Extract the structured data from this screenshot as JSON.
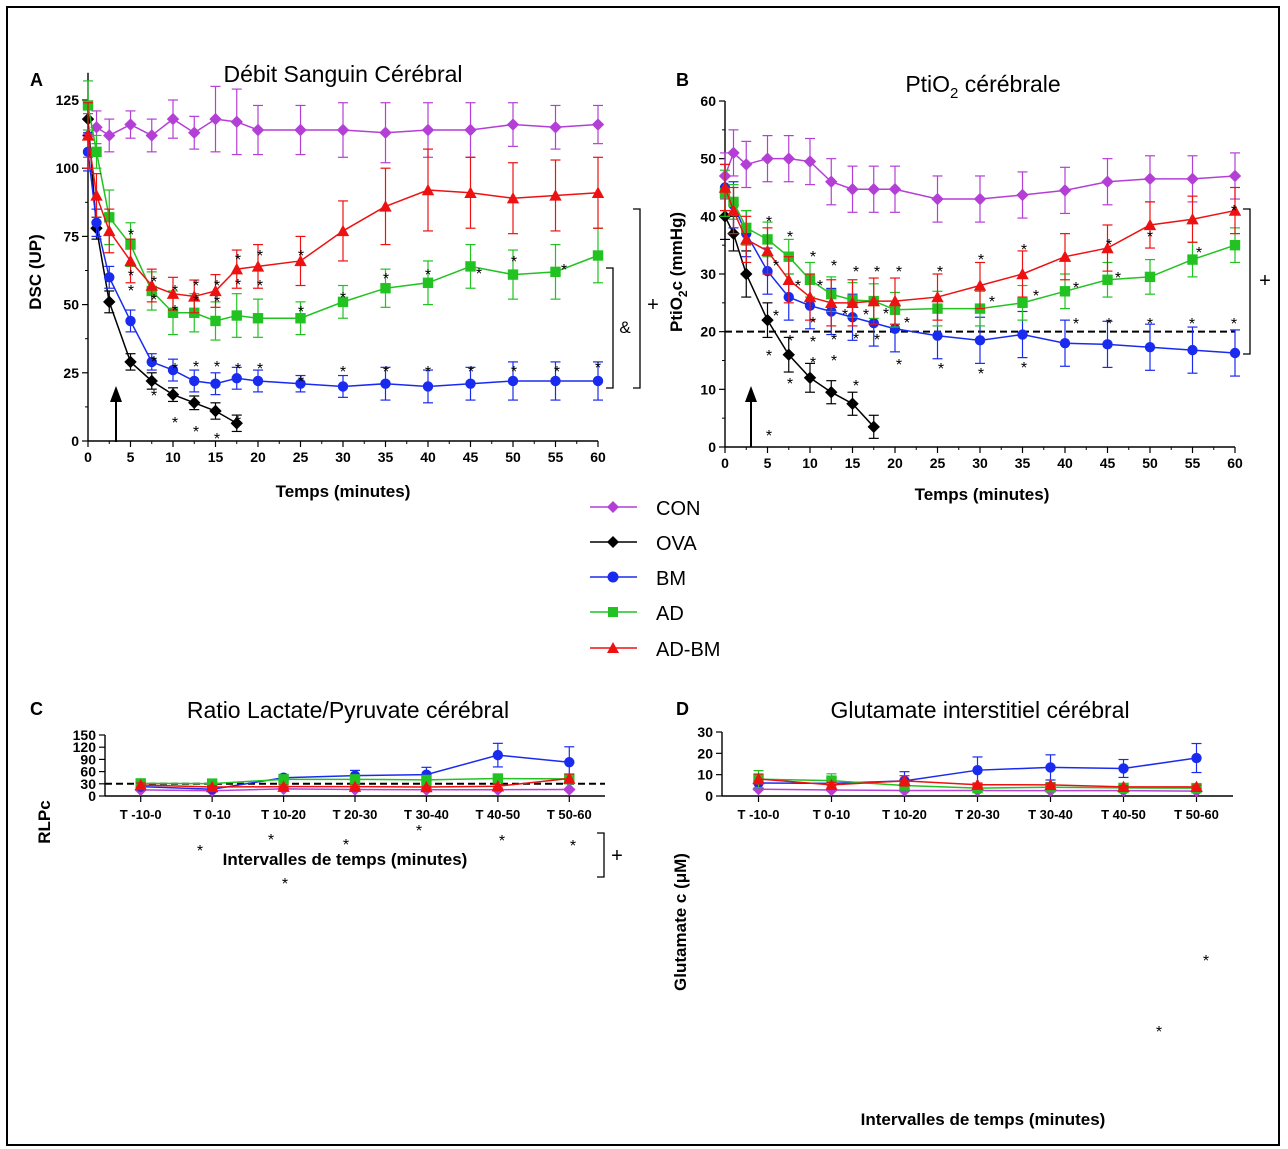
{
  "colors": {
    "CON": "#b43fd6",
    "OVA": "#000000",
    "BM": "#1a2bf0",
    "AD": "#22c222",
    "AD-BM": "#ee1111"
  },
  "legend": [
    {
      "key": "CON",
      "label": "CON",
      "marker": "diamond"
    },
    {
      "key": "OVA",
      "label": "OVA",
      "marker": "diamond"
    },
    {
      "key": "BM",
      "label": "BM",
      "marker": "circle"
    },
    {
      "key": "AD",
      "label": "AD",
      "marker": "square"
    },
    {
      "key": "AD-BM",
      "label": "AD-BM",
      "marker": "triangle"
    }
  ],
  "chart_data": [
    {
      "panel": "A",
      "type": "line",
      "title": "Débit Sanguin Cérébral",
      "xlabel": "Temps (minutes)",
      "ylabel": "DSC (UP)",
      "xlim": [
        0,
        60
      ],
      "ylim": [
        0,
        135
      ],
      "xticks": [
        0,
        5,
        10,
        15,
        20,
        25,
        30,
        35,
        40,
        45,
        50,
        55,
        60
      ],
      "yticks": [
        0,
        25,
        50,
        75,
        100,
        125
      ],
      "series": [
        {
          "name": "CON",
          "x": [
            0,
            1,
            2.5,
            5,
            7.5,
            10,
            12.5,
            15,
            17.5,
            20,
            25,
            30,
            35,
            40,
            45,
            50,
            55,
            60
          ],
          "y": [
            112,
            115,
            112,
            116,
            112,
            118,
            113,
            118,
            117,
            114,
            114,
            114,
            113,
            114,
            114,
            116,
            115,
            116
          ],
          "err": [
            8,
            6,
            6,
            5,
            6,
            7,
            6,
            12,
            12,
            9,
            9,
            10,
            11,
            10,
            10,
            8,
            8,
            7
          ]
        },
        {
          "name": "OVA",
          "x": [
            0,
            1,
            2.5,
            5,
            7.5,
            10,
            12.5,
            15,
            17.5
          ],
          "y": [
            118,
            78,
            51,
            29,
            22,
            17,
            14,
            11,
            6.5
          ],
          "err": [
            6,
            4,
            4,
            3,
            3,
            2.5,
            2.5,
            3,
            3
          ]
        },
        {
          "name": "BM",
          "x": [
            0,
            1,
            2.5,
            5,
            7.5,
            10,
            12.5,
            15,
            17.5,
            20,
            25,
            30,
            35,
            40,
            45,
            50,
            55,
            60
          ],
          "y": [
            106,
            80,
            60,
            44,
            29,
            26,
            22,
            21,
            23,
            22,
            21,
            20,
            21,
            20,
            21,
            22,
            22,
            22
          ],
          "err": [
            7,
            5,
            4,
            4,
            3,
            4,
            4,
            4,
            4,
            4,
            3,
            4,
            6,
            6,
            6,
            7,
            7,
            7
          ]
        },
        {
          "name": "AD",
          "x": [
            0,
            1,
            2.5,
            5,
            7.5,
            10,
            12.5,
            15,
            17.5,
            20,
            25,
            30,
            35,
            40,
            45,
            50,
            55,
            60
          ],
          "y": [
            123,
            106,
            82,
            72,
            55,
            47,
            47,
            44,
            46,
            45,
            45,
            51,
            56,
            58,
            64,
            61,
            62,
            68
          ],
          "err": [
            9,
            6,
            10,
            8,
            7,
            8,
            7,
            7,
            8,
            7,
            6,
            6,
            7,
            8,
            8,
            9,
            10,
            10
          ]
        },
        {
          "name": "AD-BM",
          "x": [
            0,
            1,
            2.5,
            5,
            7.5,
            10,
            12.5,
            15,
            17.5,
            20,
            25,
            30,
            35,
            40,
            45,
            50,
            55,
            60
          ],
          "y": [
            112,
            90,
            77,
            66,
            57,
            54,
            53,
            55,
            63,
            64,
            66,
            77,
            86,
            92,
            91,
            89,
            90,
            91
          ],
          "err": [
            12,
            8,
            8,
            8,
            6,
            6,
            6,
            6,
            7,
            8,
            9,
            11,
            14,
            15,
            13,
            13,
            13,
            13
          ]
        }
      ],
      "annotations": [
        {
          "text": "+",
          "spans": "AD-BM"
        },
        {
          "text": "&",
          "spans": "AD"
        },
        {
          "text": "*",
          "meaning": "significance markers"
        }
      ]
    },
    {
      "panel": "B",
      "type": "line",
      "title": "PtiO2 cérébrale",
      "title_main": "PtiO",
      "title_sub": "2",
      "title_rest": " cérébrale",
      "xlabel": "Temps (minutes)",
      "ylabel": "PtiO2c (mmHg)",
      "ylabel_parts": [
        "PtiO",
        "2",
        "c (mmHg)"
      ],
      "xlim": [
        0,
        60
      ],
      "ylim": [
        0,
        60
      ],
      "xticks": [
        0,
        5,
        10,
        15,
        20,
        25,
        30,
        35,
        40,
        45,
        50,
        55,
        60
      ],
      "yticks": [
        0,
        10,
        20,
        30,
        40,
        50,
        60
      ],
      "reference_line": 20,
      "series": [
        {
          "name": "CON",
          "x": [
            0,
            1,
            2.5,
            5,
            7.5,
            10,
            12.5,
            15,
            17.5,
            20,
            25,
            30,
            35,
            40,
            45,
            50,
            55,
            60
          ],
          "y": [
            47,
            51,
            49,
            50,
            50,
            49.5,
            46,
            44.7,
            44.7,
            44.7,
            43,
            43,
            43.7,
            44.5,
            46,
            46.5,
            46.5,
            47
          ],
          "err": [
            4,
            4,
            4,
            4,
            4,
            4,
            4,
            4,
            4,
            4,
            4,
            4,
            4,
            4,
            4,
            4,
            4,
            4
          ]
        },
        {
          "name": "OVA",
          "x": [
            0,
            1,
            2.5,
            5,
            7.5,
            10,
            12.5,
            15,
            17.5
          ],
          "y": [
            40,
            37,
            30,
            22,
            16,
            12,
            9.5,
            7.5,
            3.5
          ],
          "err": [
            4,
            3,
            4,
            3,
            3,
            2.5,
            2,
            2,
            2
          ]
        },
        {
          "name": "BM",
          "x": [
            0,
            1,
            2.5,
            5,
            7.5,
            10,
            12.5,
            15,
            17.5,
            20,
            25,
            30,
            35,
            40,
            45,
            50,
            55,
            60
          ],
          "y": [
            45,
            42,
            37,
            30.5,
            26,
            24.5,
            23.5,
            22.5,
            21.5,
            20.5,
            19.3,
            18.5,
            19.5,
            18,
            17.8,
            17.3,
            16.8,
            16.3
          ],
          "err": [
            4,
            4,
            4,
            4,
            4,
            4,
            4,
            4,
            4,
            4,
            4,
            4,
            4,
            4,
            4,
            4,
            4,
            4
          ]
        },
        {
          "name": "AD",
          "x": [
            0,
            1,
            2.5,
            5,
            7.5,
            10,
            12.5,
            15,
            17.5,
            20,
            25,
            30,
            35,
            40,
            45,
            50,
            55,
            60
          ],
          "y": [
            44,
            42.5,
            38,
            36,
            33,
            29,
            26.5,
            25.5,
            25.3,
            23.8,
            24,
            24,
            25,
            27,
            29,
            29.5,
            32.5,
            35
          ],
          "err": [
            4,
            3,
            3,
            3,
            3,
            3,
            3,
            3,
            3,
            3,
            3,
            3,
            3,
            3,
            3,
            3,
            3,
            3
          ]
        },
        {
          "name": "AD-BM",
          "x": [
            0,
            1,
            2.5,
            5,
            7.5,
            10,
            12.5,
            15,
            17.5,
            20,
            25,
            30,
            35,
            40,
            45,
            50,
            55,
            60
          ],
          "y": [
            45,
            41,
            36,
            34,
            29,
            26,
            25,
            25,
            25.3,
            25.3,
            26,
            28,
            30,
            33,
            34.5,
            38.5,
            39.5,
            41
          ],
          "err": [
            4,
            4,
            4,
            4,
            4,
            4,
            4,
            4,
            4,
            4,
            4,
            4,
            4,
            4,
            4,
            4,
            4,
            4
          ]
        }
      ],
      "annotations": [
        {
          "text": "+",
          "spans": "AD and AD-BM"
        },
        {
          "text": "*",
          "meaning": "significance markers"
        }
      ]
    },
    {
      "panel": "C",
      "type": "line",
      "title": "Ratio Lactate/Pyruvate cérébral",
      "xlabel": "Intervalles de temps (minutes)",
      "ylabel": "RLPc",
      "categories": [
        "T -10-0",
        "T 0-10",
        "T 10-20",
        "T 20-30",
        "T 30-40",
        "T 40-50",
        "T 50-60"
      ],
      "ylim": [
        0,
        150
      ],
      "yticks": [
        0,
        30,
        60,
        90,
        120,
        150
      ],
      "reference_line": 30,
      "series": [
        {
          "name": "CON",
          "values": [
            15,
            13,
            17.5,
            16,
            15.5,
            15.5,
            16
          ],
          "err": [
            2,
            2,
            2,
            2,
            2,
            2,
            2
          ]
        },
        {
          "name": "BM",
          "values": [
            23,
            16.5,
            45,
            50,
            52.5,
            100.5,
            83
          ],
          "err": [
            5,
            3,
            8,
            13,
            18,
            29,
            38
          ]
        },
        {
          "name": "AD",
          "values": [
            31,
            30.5,
            41,
            41,
            39.5,
            43,
            42
          ],
          "err": [
            5,
            5,
            10,
            10,
            10,
            10,
            12
          ]
        },
        {
          "name": "AD-BM",
          "values": [
            27,
            22,
            23,
            23,
            22,
            24,
            43
          ],
          "err": [
            5,
            3,
            4,
            4,
            3,
            4,
            11
          ]
        }
      ],
      "annotations": [
        {
          "text": "+"
        },
        {
          "text": "*",
          "meaning": "significance markers"
        }
      ]
    },
    {
      "panel": "D",
      "type": "line",
      "title": "Glutamate interstitiel cérébral",
      "xlabel": "Intervalles de temps (minutes)",
      "ylabel": "Glutamate c (μM)",
      "categories": [
        "T -10-0",
        "T 0-10",
        "T 10-20",
        "T 20-30",
        "T 30-40",
        "T 40-50",
        "T 50-60"
      ],
      "ylim": [
        0,
        30
      ],
      "yticks": [
        0,
        10,
        20,
        30
      ],
      "series": [
        {
          "name": "CON",
          "values": [
            3.2,
            2.8,
            2.6,
            2.6,
            2.5,
            2.5,
            2.3
          ],
          "err": [
            0.5,
            0.5,
            0.4,
            0.4,
            0.4,
            0.3,
            0.4
          ]
        },
        {
          "name": "BM",
          "values": [
            6.1,
            5.9,
            7.1,
            12.1,
            13.4,
            12.9,
            17.8
          ],
          "err": [
            2.2,
            2.5,
            4.3,
            6.2,
            5.9,
            4.2,
            6.8
          ]
        },
        {
          "name": "AD",
          "values": [
            7.9,
            7.2,
            4.9,
            3.7,
            4.1,
            3.8,
            3.7
          ],
          "err": [
            4.0,
            3.2,
            1.2,
            0.6,
            0.6,
            0.5,
            0.5
          ]
        },
        {
          "name": "AD-BM",
          "values": [
            8.0,
            5.2,
            7.1,
            5.3,
            5.2,
            4.3,
            4.3
          ],
          "err": [
            2.3,
            1.2,
            2.4,
            0.8,
            0.8,
            0.6,
            0.8
          ]
        }
      ],
      "annotations": [
        {
          "text": "*",
          "meaning": "significance markers"
        }
      ]
    }
  ]
}
